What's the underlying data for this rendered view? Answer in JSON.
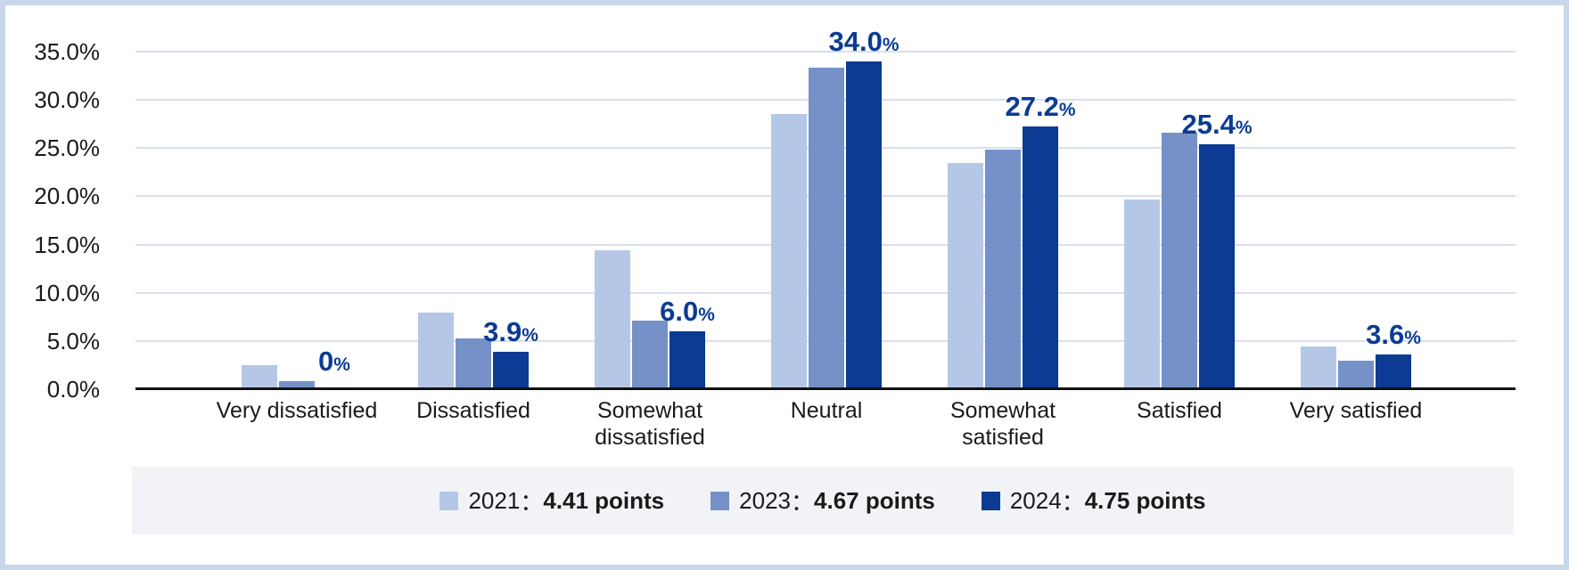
{
  "chart_data": {
    "type": "bar",
    "title": "",
    "categories": [
      "Very dissatisfied",
      "Dissatisfied",
      "Somewhat dissatisfied",
      "Neutral",
      "Somewhat satisfied",
      "Satisfied",
      "Very satisfied"
    ],
    "series": [
      {
        "name": "2021",
        "score": "4.41 points",
        "color": "#b4c7e7",
        "values": [
          2.5,
          7.9,
          14.4,
          28.5,
          23.5,
          19.7,
          4.4
        ]
      },
      {
        "name": "2023",
        "score": "4.67 points",
        "color": "#7591c7",
        "values": [
          0.8,
          5.3,
          7.1,
          33.3,
          24.8,
          26.6,
          3.0
        ]
      },
      {
        "name": "2024",
        "score": "4.75 points",
        "color": "#0b3b92",
        "values": [
          0,
          3.9,
          6.0,
          34.0,
          27.2,
          25.4,
          3.6
        ]
      }
    ],
    "data_labels": [
      {
        "value": "0",
        "suffix": "%"
      },
      {
        "value": "3.9",
        "suffix": "%"
      },
      {
        "value": "6.0",
        "suffix": "%"
      },
      {
        "value": "34.0",
        "suffix": "%"
      },
      {
        "value": "27.2",
        "suffix": "%"
      },
      {
        "value": "25.4",
        "suffix": "%"
      },
      {
        "value": "3.6",
        "suffix": "%"
      }
    ],
    "y_ticks": [
      {
        "label": "35.0%",
        "pct": 35
      },
      {
        "label": "30.0%",
        "pct": 30
      },
      {
        "label": "25.0%",
        "pct": 25
      },
      {
        "label": "20.0%",
        "pct": 20
      },
      {
        "label": "15.0%",
        "pct": 15
      },
      {
        "label": "10.0%",
        "pct": 10
      },
      {
        "label": "5.0%",
        "pct": 5
      },
      {
        "label": "0.0%",
        "pct": 0
      }
    ],
    "ylim": [
      0,
      35
    ],
    "grid": true,
    "legend_position": "bottom",
    "legend_separator": "：",
    "colors": {
      "gridline": "#d8e0ee",
      "axis": "#111111",
      "data_label_text": "#0b3b92",
      "text": "#1a1a1a",
      "legend_background": "#f2f3f7",
      "frame_border": "#c9d7ea"
    }
  }
}
